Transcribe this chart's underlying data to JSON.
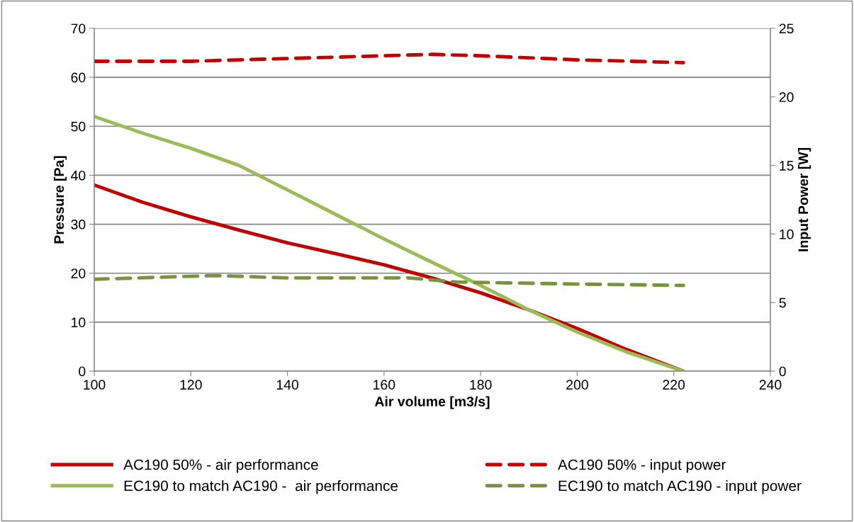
{
  "chart_data": {
    "type": "line",
    "xlabel": "Air volume [m3/s]",
    "ylabel": "Pressure [Pa]",
    "y2label": "Input Power [W]",
    "xlim": [
      100,
      240
    ],
    "xticks": [
      100,
      120,
      140,
      160,
      180,
      200,
      220,
      240
    ],
    "ylim": [
      0,
      70
    ],
    "yticks": [
      0,
      10,
      20,
      30,
      40,
      50,
      60,
      70
    ],
    "y2lim": [
      0,
      25
    ],
    "y2ticks": [
      0,
      5,
      10,
      15,
      20,
      25
    ],
    "grid": "y",
    "legend": "bottom",
    "marker": "none",
    "series": [
      {
        "name": "AC190 50% - air performance",
        "color": "#c00000",
        "line_style": "solid",
        "x": [
          100,
          110,
          120,
          130,
          140,
          150,
          160,
          170,
          180,
          190,
          200,
          210,
          222
        ],
        "values": [
          38,
          34.5,
          31.5,
          28.8,
          26.2,
          24,
          21.7,
          19,
          16,
          12.5,
          8.7,
          4.5,
          0
        ]
      },
      {
        "name": "EC190 to match AC190 -  air performance",
        "color": "#9bbb59",
        "line_style": "solid",
        "x": [
          100,
          110,
          120,
          130,
          140,
          150,
          160,
          170,
          180,
          190,
          200,
          210,
          222
        ],
        "values": [
          52,
          48.6,
          45.5,
          42,
          37,
          32,
          27,
          22.2,
          17.5,
          12.5,
          8,
          4,
          0
        ]
      },
      {
        "name": "AC190 50% - input power",
        "color": "#c00000",
        "line_style": "dashed",
        "axis": "y2",
        "x": [
          100,
          120,
          140,
          160,
          170,
          180,
          200,
          222
        ],
        "values": [
          22.6,
          22.6,
          22.8,
          23.0,
          23.1,
          23.0,
          22.7,
          22.5
        ]
      },
      {
        "name": "EC190 to match AC190 - input power",
        "color": "#77933c",
        "line_style": "dashed",
        "axis": "y2",
        "x": [
          100,
          125,
          140,
          165,
          175,
          200,
          222
        ],
        "values": [
          6.7,
          6.97,
          6.8,
          6.8,
          6.5,
          6.35,
          6.25
        ]
      }
    ]
  }
}
